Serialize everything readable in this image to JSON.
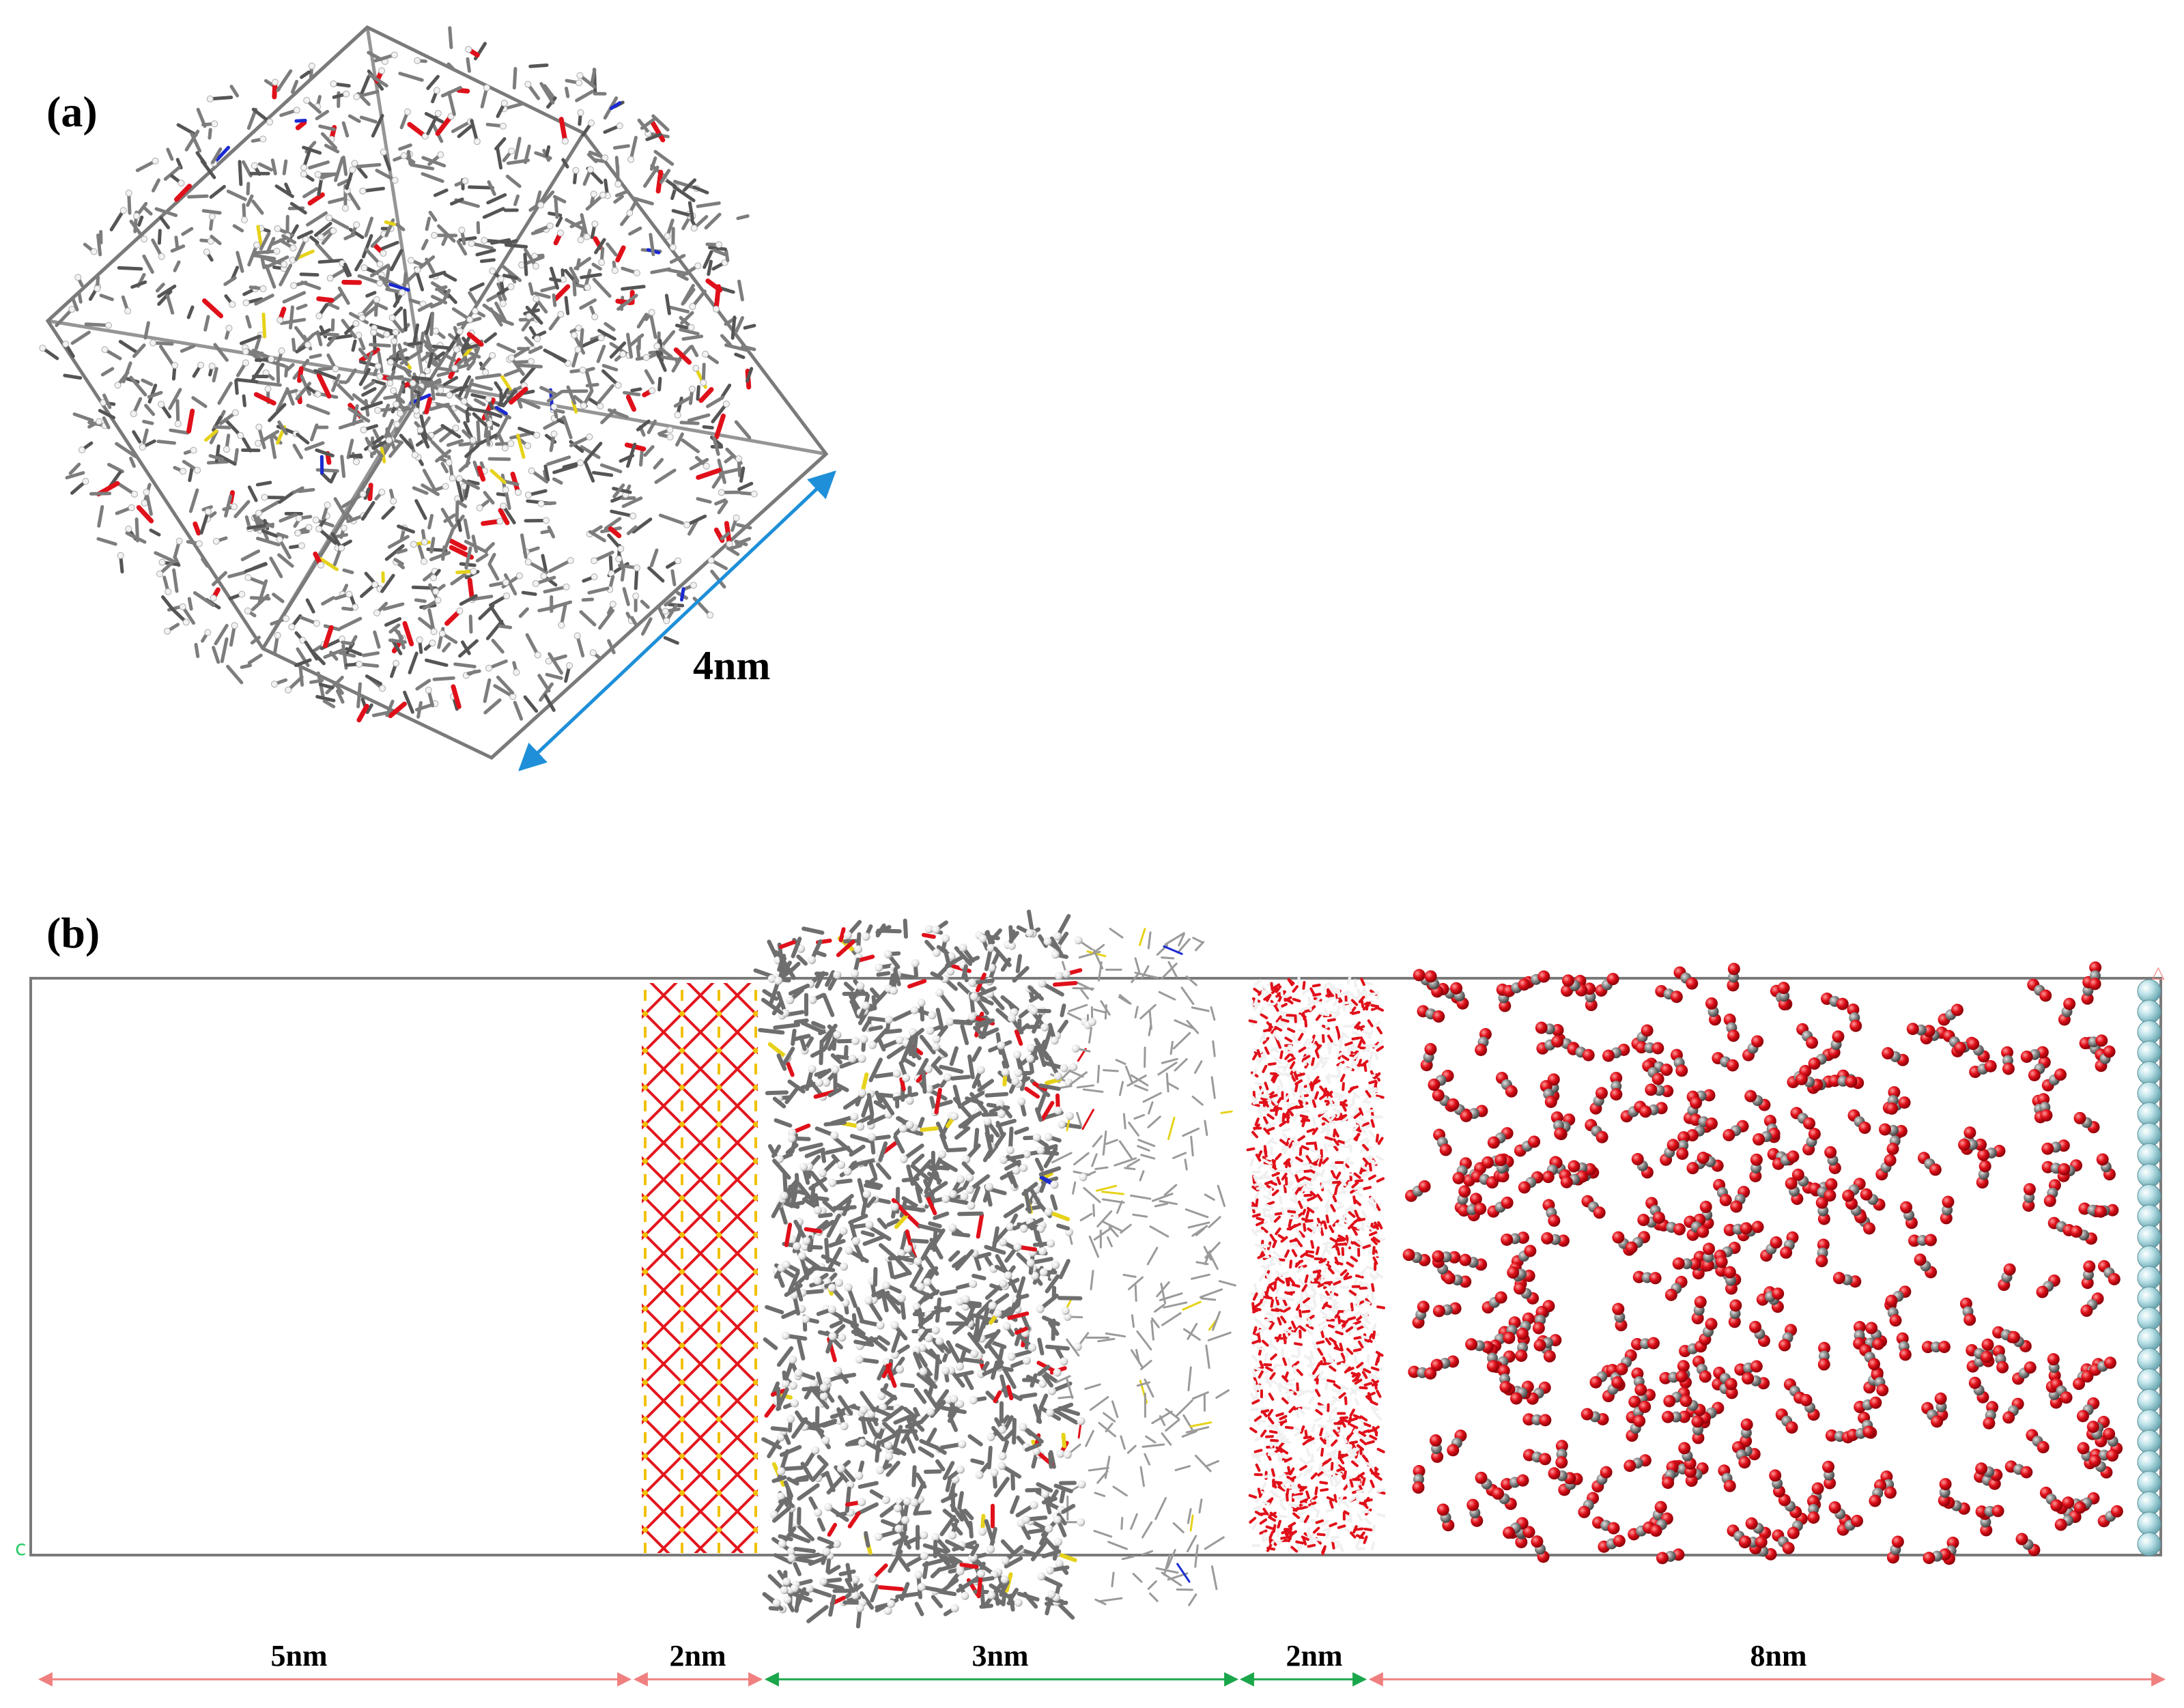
{
  "panel_a": {
    "label": "(a)",
    "dimension": "4nm"
  },
  "panel_b": {
    "label": "(b)",
    "segments": [
      {
        "label": "5nm",
        "arrow_color": "#f08080"
      },
      {
        "label": "2nm",
        "arrow_color": "#f08080"
      },
      {
        "label": "3nm",
        "arrow_color": "#1aa64a"
      },
      {
        "label": "2nm",
        "arrow_color": "#1aa64a"
      },
      {
        "label": "8nm",
        "arrow_color": "#f08080"
      }
    ]
  },
  "colors": {
    "carbon": "#808080",
    "hydrogen": "#e8e8e8",
    "oxygen": "#e0101a",
    "sulfur": "#e6d21a",
    "nitrogen": "#1a2ad0",
    "graphite": "#9fd4dc",
    "box": "#7a7a7a",
    "dimension_arrow": "#1e8fd8"
  }
}
